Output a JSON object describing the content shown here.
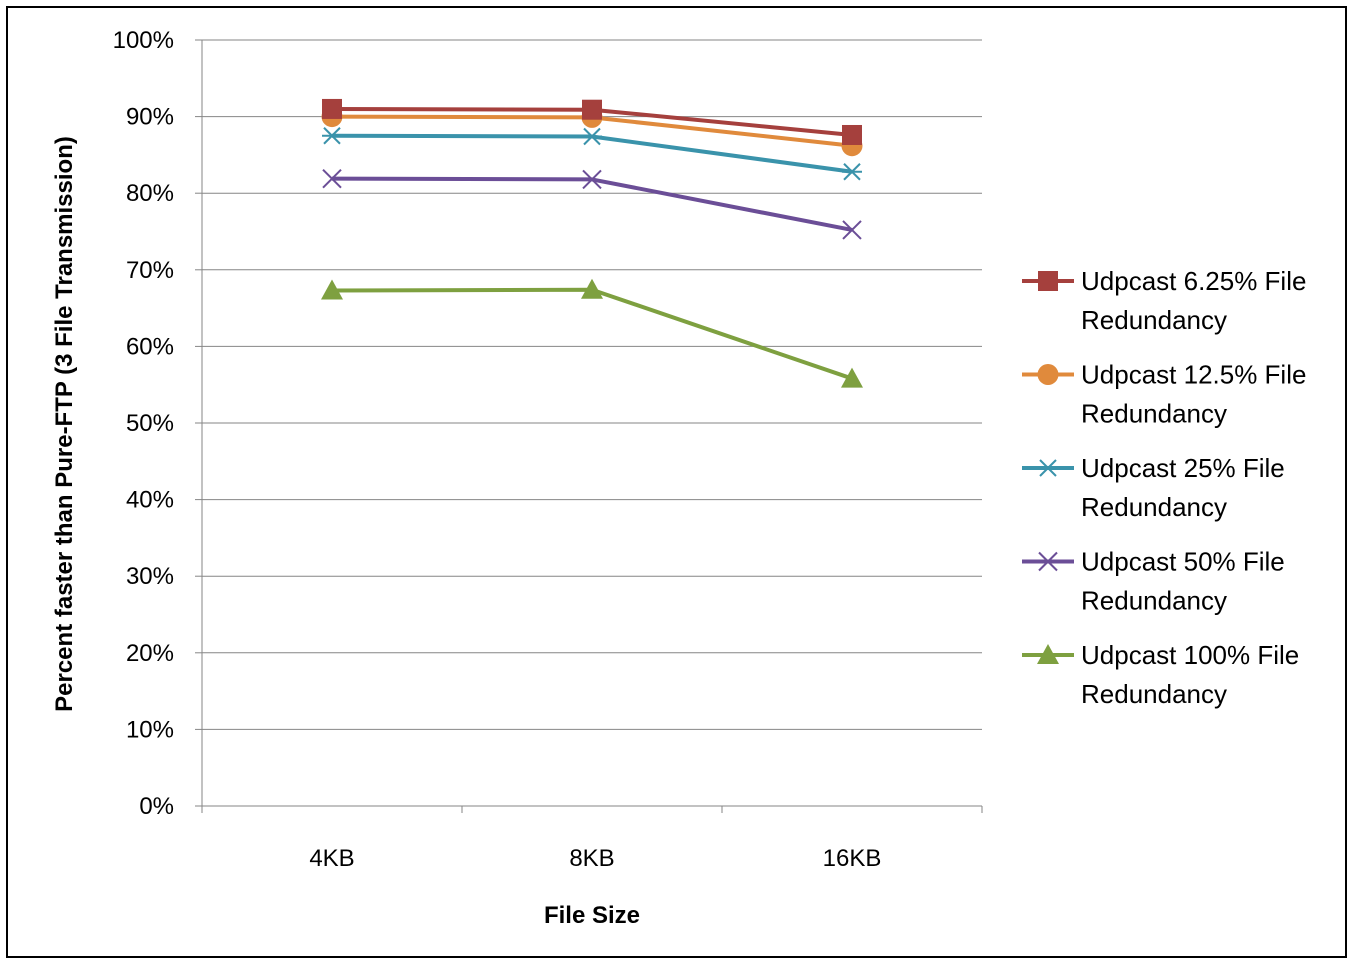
{
  "chart_data": {
    "type": "line",
    "xlabel": "File Size",
    "ylabel": "Percent faster than Pure-FTP (3 File Transmission)",
    "categories": [
      "4KB",
      "8KB",
      "16KB"
    ],
    "ylim": [
      0,
      100
    ],
    "yticks": [
      "0%",
      "10%",
      "20%",
      "30%",
      "40%",
      "50%",
      "60%",
      "70%",
      "80%",
      "90%",
      "100%"
    ],
    "grid": true,
    "legend_position": "right",
    "series": [
      {
        "name": "Udpcast 6.25% File Redundancy",
        "name_lines": [
          "Udpcast 6.25% File",
          "Redundancy"
        ],
        "color": "#A5403D",
        "marker": "square",
        "values": [
          91,
          90.9,
          87.6
        ]
      },
      {
        "name": "Udpcast 12.5% File Redundancy",
        "name_lines": [
          "Udpcast 12.5% File",
          "Redundancy"
        ],
        "color": "#E08A3C",
        "marker": "circle",
        "values": [
          90,
          89.9,
          86.2
        ]
      },
      {
        "name": "Udpcast 25% File Redundancy",
        "name_lines": [
          "Udpcast 25% File",
          "Redundancy"
        ],
        "color": "#3A93AB",
        "marker": "asterisk",
        "values": [
          87.5,
          87.4,
          82.8
        ]
      },
      {
        "name": "Udpcast 50% File Redundancy",
        "name_lines": [
          "Udpcast 50% File",
          "Redundancy"
        ],
        "color": "#6B4E97",
        "marker": "x",
        "values": [
          81.9,
          81.8,
          75.2
        ]
      },
      {
        "name": "Udpcast 100% File Redundancy",
        "name_lines": [
          "Udpcast 100% File",
          "Redundancy"
        ],
        "color": "#7EA040",
        "marker": "triangle",
        "values": [
          67.3,
          67.4,
          55.8
        ]
      }
    ]
  }
}
